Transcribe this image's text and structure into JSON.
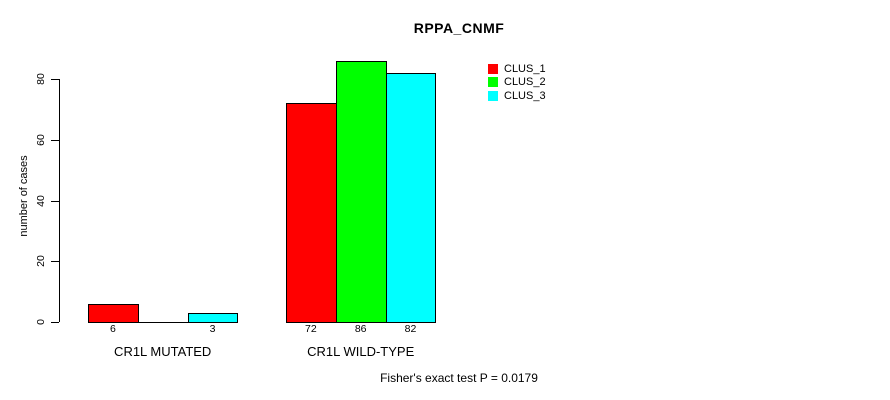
{
  "chart_data": {
    "type": "bar",
    "title": "RPPA_CNMF",
    "xlabel": "",
    "ylabel": "number of cases",
    "categories": [
      "CR1L MUTATED",
      "CR1L WILD-TYPE"
    ],
    "series": [
      {
        "name": "CLUS_1",
        "color": "#ff0000",
        "values": [
          6,
          72
        ]
      },
      {
        "name": "CLUS_2",
        "color": "#00ff00",
        "values": [
          0,
          86
        ]
      },
      {
        "name": "CLUS_3",
        "color": "#00ffff",
        "values": [
          3,
          82
        ]
      }
    ],
    "bar_value_labels": [
      "6",
      "",
      "3",
      "72",
      "86",
      "82"
    ],
    "yticks": [
      0,
      20,
      40,
      60,
      80
    ],
    "ylim": [
      0,
      86
    ],
    "grid": false,
    "legend_position": "top-right",
    "legend_entries": [
      "CLUS_1",
      "CLUS_2",
      "CLUS_3"
    ],
    "annotation": "Fisher's exact test P = 0.0179"
  }
}
